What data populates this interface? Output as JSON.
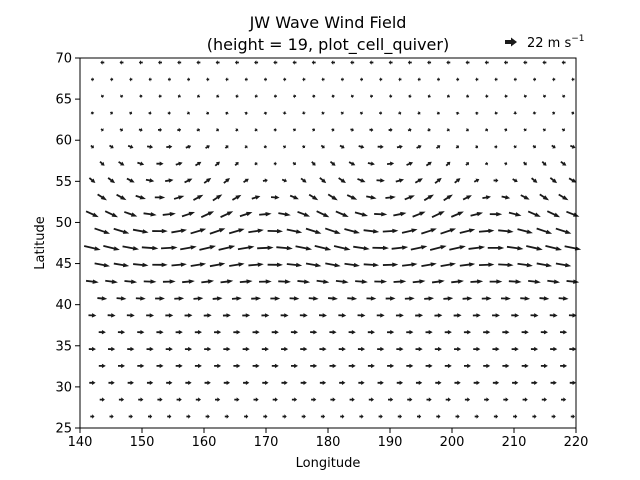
{
  "chart_data": {
    "type": "quiver",
    "title": "JW Wave Wind Field",
    "subtitle": "(height = 19, plot_cell_quiver)",
    "xlabel": "Longitude",
    "ylabel": "Latitude",
    "xlim": [
      140,
      220
    ],
    "ylim": [
      25,
      70
    ],
    "xticks": [
      140,
      150,
      160,
      170,
      180,
      190,
      200,
      210,
      220
    ],
    "yticks": [
      25,
      30,
      35,
      40,
      45,
      50,
      55,
      60,
      65,
      70
    ],
    "grid": false,
    "arrow_color": "#1a1a1a",
    "key": {
      "label": "22 m s",
      "exponent": "−1",
      "magnitude": 22,
      "units": "m s^-1",
      "placement": "above-top-right"
    },
    "field": {
      "description_hidden": true,
      "jet_center_lat": 47,
      "jet_peak_speed": 24,
      "wave_crest_lons": [
        162,
        198
      ],
      "wave_trough_lons": [
        144,
        180,
        216
      ]
    }
  }
}
